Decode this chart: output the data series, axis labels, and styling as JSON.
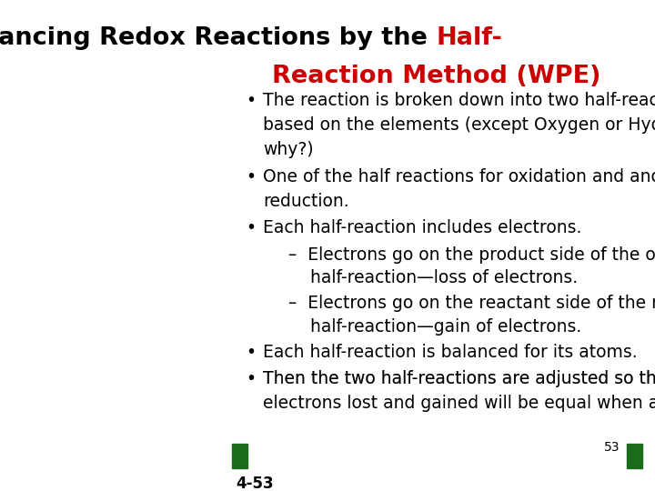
{
  "title_black": "Balancing Redox Reactions by the ",
  "title_red": "Half-\nReaction Method (WPE)",
  "title_line1_black": "Balancing Redox Reactions by the ",
  "title_line1_red": "Half-",
  "title_line2_red": "Reaction Method (WPE)",
  "background_color": "#ffffff",
  "text_color": "#000000",
  "title_color_black": "#000000",
  "title_color_red": "#cc0000",
  "bullet_color": "#000000",
  "green_box_color": "#1a6b1a",
  "slide_number": "53",
  "slide_id": "4-53",
  "bullet_points": [
    {
      "level": 1,
      "text": "The reaction is broken down into two half-reactions,\nbased on the elements (except Oxygen or Hydrogen,\nwhy?)"
    },
    {
      "level": 1,
      "text": "One of the half reactions for oxidation and another for\nreduction."
    },
    {
      "level": 1,
      "text": "Each half-reaction includes electrons."
    },
    {
      "level": 2,
      "text": "–  Electrons go on the product side of the oxidation\n    half-reaction—loss of electrons."
    },
    {
      "level": 2,
      "text": "–  Electrons go on the reactant side of the reduction\n    half-reaction—gain of electrons."
    },
    {
      "level": 1,
      "text": "Each half-reaction is balanced for its atoms."
    },
    {
      "level": 1,
      "text": "Then the two half-reactions are adjusted so that the\nelectrons lost and gained will be equal when added.",
      "underline": "the\nelectrons lost and gained will be equal"
    }
  ],
  "font_size_title": 20,
  "font_size_body": 14,
  "font_size_small": 10
}
